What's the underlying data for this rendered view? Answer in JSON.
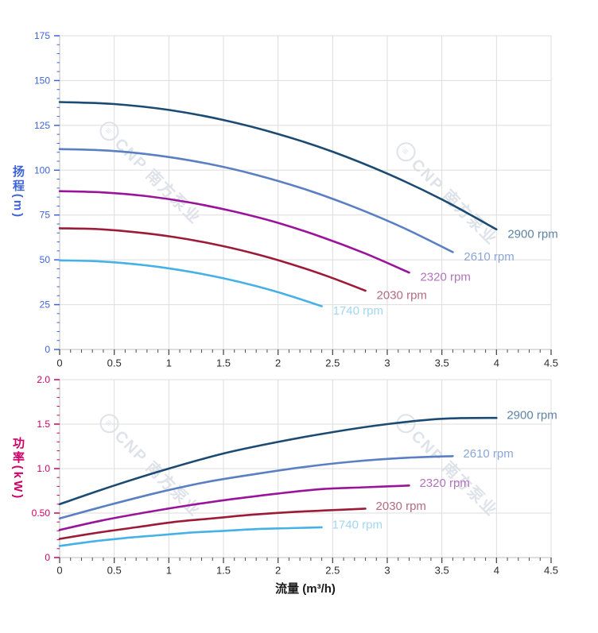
{
  "page": {
    "background": "#ffffff"
  },
  "watermark": {
    "logo": "≡",
    "text": "CNP 南方泵业"
  },
  "chart_data": [
    {
      "type": "line",
      "id": "head",
      "title": "",
      "xlabel": "",
      "ylabel": "扬程(m)",
      "x_range": [
        0,
        4.5
      ],
      "x_major_step": 0.5,
      "x_minor_step": 0.1,
      "y_range": [
        0,
        175
      ],
      "y_major_step": 25,
      "y_minor_step": 5,
      "grid": true,
      "legend_position": "end-of-line",
      "x_tick_labels": [
        "0",
        "0.5",
        "1",
        "1.5",
        "2",
        "2.5",
        "3",
        "3.5",
        "4",
        "4.5"
      ],
      "y_tick_labels": [
        "0",
        "25",
        "50",
        "75",
        "100",
        "125",
        "150",
        "175"
      ],
      "y_axis_color": "#3e64d8",
      "x_tick_label_color": "#2b2b2b",
      "series": [
        {
          "name": "2900 rpm",
          "color": "#1b4a72",
          "label_color": "#5e83a4",
          "points": [
            [
              0,
              138
            ],
            [
              0.5,
              136.9
            ],
            [
              1,
              133.6
            ],
            [
              1.5,
              128
            ],
            [
              2,
              120.2
            ],
            [
              2.5,
              110.3
            ],
            [
              3,
              98.1
            ],
            [
              3.5,
              83.7
            ],
            [
              4,
              67
            ]
          ]
        },
        {
          "name": "2610 rpm",
          "color": "#5a7fc2",
          "label_color": "#8ba6d7",
          "points": [
            [
              0,
              111.8
            ],
            [
              0.45,
              110.9
            ],
            [
              0.9,
              108.2
            ],
            [
              1.35,
              103.7
            ],
            [
              1.8,
              97.4
            ],
            [
              2.25,
              89.3
            ],
            [
              2.7,
              79.4
            ],
            [
              3.15,
              67.8
            ],
            [
              3.6,
              54.3
            ]
          ]
        },
        {
          "name": "2320 rpm",
          "color": "#9a149a",
          "label_color": "#b273bd",
          "points": [
            [
              0,
              88.3
            ],
            [
              0.4,
              87.6
            ],
            [
              0.8,
              85.5
            ],
            [
              1.2,
              81.9
            ],
            [
              1.6,
              76.9
            ],
            [
              2,
              70.6
            ],
            [
              2.4,
              62.7
            ],
            [
              2.8,
              53.5
            ],
            [
              3.2,
              42.9
            ]
          ]
        },
        {
          "name": "2030 rpm",
          "color": "#9c1b38",
          "label_color": "#b36b81",
          "points": [
            [
              0,
              67.6
            ],
            [
              0.35,
              67.1
            ],
            [
              0.7,
              65.4
            ],
            [
              1.05,
              62.7
            ],
            [
              1.4,
              58.9
            ],
            [
              1.75,
              54
            ],
            [
              2.1,
              48
            ],
            [
              2.45,
              40.9
            ],
            [
              2.8,
              32.8
            ]
          ]
        },
        {
          "name": "1740 rpm",
          "color": "#46b1e6",
          "label_color": "#a3d6f2",
          "points": [
            [
              0,
              49.7
            ],
            [
              0.3,
              49.3
            ],
            [
              0.6,
              48.1
            ],
            [
              0.9,
              46.1
            ],
            [
              1.2,
              43.3
            ],
            [
              1.5,
              39.7
            ],
            [
              1.8,
              35.3
            ],
            [
              2.1,
              30.1
            ],
            [
              2.4,
              24.1
            ]
          ]
        }
      ]
    },
    {
      "type": "line",
      "id": "power",
      "title": "",
      "xlabel": "流量 (m³/h)",
      "ylabel": "功率(kW)",
      "x_range": [
        0,
        4.5
      ],
      "x_major_step": 0.5,
      "x_minor_step": 0.1,
      "y_range": [
        0,
        2.0
      ],
      "y_major_step": 0.5,
      "y_minor_step": 0.1,
      "grid": true,
      "legend_position": "end-of-line",
      "x_tick_labels": [
        "0",
        "0.5",
        "1",
        "1.5",
        "2",
        "2.5",
        "3",
        "3.5",
        "4",
        "4.5"
      ],
      "y_tick_labels": [
        "0",
        "0.50",
        "1.0",
        "1.5",
        "2.0"
      ],
      "y_axis_color": "#cc0066",
      "x_tick_label_color": "#2b2b2b",
      "series": [
        {
          "name": "2900 rpm",
          "color": "#1b4a72",
          "label_color": "#5e83a4",
          "points": [
            [
              0,
              0.6
            ],
            [
              0.5,
              0.81
            ],
            [
              1,
              1.0
            ],
            [
              1.5,
              1.17
            ],
            [
              2,
              1.3
            ],
            [
              2.5,
              1.41
            ],
            [
              3,
              1.5
            ],
            [
              3.5,
              1.56
            ],
            [
              4,
              1.57
            ]
          ]
        },
        {
          "name": "2610 rpm",
          "color": "#5a7fc2",
          "label_color": "#8ba6d7",
          "points": [
            [
              0,
              0.44
            ],
            [
              0.45,
              0.59
            ],
            [
              0.9,
              0.73
            ],
            [
              1.35,
              0.85
            ],
            [
              1.8,
              0.94
            ],
            [
              2.25,
              1.02
            ],
            [
              2.7,
              1.08
            ],
            [
              3.15,
              1.12
            ],
            [
              3.6,
              1.14
            ]
          ]
        },
        {
          "name": "2320 rpm",
          "color": "#9a149a",
          "label_color": "#b273bd",
          "points": [
            [
              0,
              0.31
            ],
            [
              0.4,
              0.42
            ],
            [
              0.8,
              0.51
            ],
            [
              1.2,
              0.59
            ],
            [
              1.6,
              0.66
            ],
            [
              2,
              0.72
            ],
            [
              2.4,
              0.77
            ],
            [
              2.8,
              0.79
            ],
            [
              3.2,
              0.81
            ]
          ]
        },
        {
          "name": "2030 rpm",
          "color": "#9c1b38",
          "label_color": "#b36b81",
          "points": [
            [
              0,
              0.21
            ],
            [
              0.35,
              0.28
            ],
            [
              0.7,
              0.34
            ],
            [
              1.05,
              0.4
            ],
            [
              1.4,
              0.44
            ],
            [
              1.75,
              0.48
            ],
            [
              2.1,
              0.51
            ],
            [
              2.45,
              0.53
            ],
            [
              2.8,
              0.55
            ]
          ]
        },
        {
          "name": "1740 rpm",
          "color": "#46b1e6",
          "label_color": "#a3d6f2",
          "points": [
            [
              0,
              0.13
            ],
            [
              0.3,
              0.18
            ],
            [
              0.6,
              0.22
            ],
            [
              0.9,
              0.25
            ],
            [
              1.2,
              0.28
            ],
            [
              1.5,
              0.3
            ],
            [
              1.8,
              0.32
            ],
            [
              2.1,
              0.33
            ],
            [
              2.4,
              0.34
            ]
          ]
        }
      ]
    }
  ]
}
